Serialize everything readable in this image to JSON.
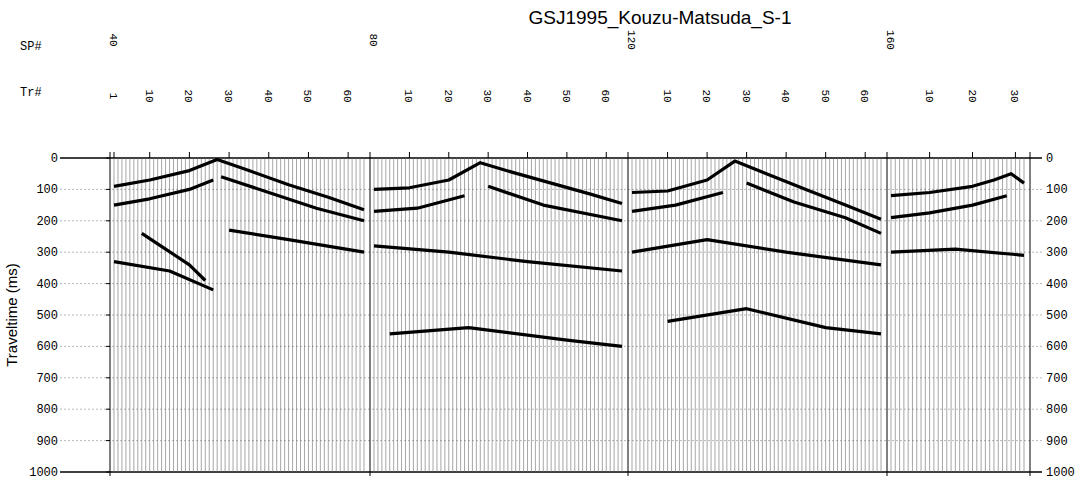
{
  "chart_data": {
    "type": "wiggle",
    "title": "GSJ1995_Kouzu-Matsuda_S-1",
    "y_label": "Traveltime (ms)",
    "x_labels": [
      "SP#",
      "Tr#"
    ],
    "ylim": [
      0,
      1000
    ],
    "yticks": [
      0,
      100,
      200,
      300,
      400,
      500,
      600,
      700,
      800,
      900,
      1000
    ],
    "grid": true,
    "panels": [
      {
        "sp": 40,
        "xlim": [
          1,
          64
        ],
        "xticks": [
          1,
          10,
          20,
          30,
          40,
          50,
          60
        ],
        "events": [
          {
            "trace": [
              1,
              10,
              20,
              27,
              35,
              45,
              55,
              64
            ],
            "time": [
              90,
              70,
              40,
              5,
              40,
              85,
              125,
              165
            ]
          },
          {
            "trace": [
              1,
              10,
              20,
              26
            ],
            "time": [
              150,
              130,
              100,
              70
            ]
          },
          {
            "trace": [
              8,
              14,
              20,
              24
            ],
            "time": [
              240,
              290,
              340,
              390
            ]
          },
          {
            "trace": [
              28,
              40,
              52,
              64
            ],
            "time": [
              60,
              110,
              160,
              200
            ]
          },
          {
            "trace": [
              1,
              15,
              26
            ],
            "time": [
              330,
              360,
              420
            ]
          },
          {
            "trace": [
              30,
              45,
              64
            ],
            "time": [
              230,
              260,
              300
            ]
          }
        ]
      },
      {
        "sp": 80,
        "xlim": [
          1,
          64
        ],
        "xticks": [
          10,
          20,
          30,
          40,
          50,
          60
        ],
        "events": [
          {
            "trace": [
              1,
              10,
              20,
              28,
              36,
              46,
              56,
              64
            ],
            "time": [
              100,
              95,
              70,
              15,
              45,
              80,
              115,
              145
            ]
          },
          {
            "trace": [
              1,
              12,
              24
            ],
            "time": [
              170,
              160,
              120
            ]
          },
          {
            "trace": [
              30,
              44,
              64
            ],
            "time": [
              90,
              150,
              200
            ]
          },
          {
            "trace": [
              1,
              20,
              40,
              64
            ],
            "time": [
              280,
              300,
              330,
              360
            ]
          },
          {
            "trace": [
              5,
              25,
              50,
              64
            ],
            "time": [
              560,
              540,
              580,
              600
            ]
          }
        ]
      },
      {
        "sp": 120,
        "xlim": [
          1,
          64
        ],
        "xticks": [
          10,
          20,
          30,
          40,
          50,
          60
        ],
        "events": [
          {
            "trace": [
              1,
              10,
              20,
              27,
              35,
              45,
              55,
              64
            ],
            "time": [
              110,
              105,
              70,
              10,
              50,
              100,
              150,
              195
            ]
          },
          {
            "trace": [
              1,
              12,
              24
            ],
            "time": [
              170,
              150,
              110
            ]
          },
          {
            "trace": [
              30,
              42,
              55,
              64
            ],
            "time": [
              80,
              140,
              190,
              240
            ]
          },
          {
            "trace": [
              1,
              20,
              40,
              64
            ],
            "time": [
              300,
              260,
              300,
              340
            ]
          },
          {
            "trace": [
              10,
              30,
              50,
              64
            ],
            "time": [
              520,
              480,
              540,
              560
            ]
          }
        ]
      },
      {
        "sp": 160,
        "xlim": [
          1,
          32
        ],
        "xticks": [
          10,
          20,
          30
        ],
        "events": [
          {
            "trace": [
              1,
              10,
              20,
              25,
              29,
              32
            ],
            "time": [
              120,
              110,
              90,
              70,
              50,
              80
            ]
          },
          {
            "trace": [
              1,
              10,
              20,
              28
            ],
            "time": [
              190,
              175,
              150,
              120
            ]
          },
          {
            "trace": [
              1,
              16,
              32
            ],
            "time": [
              300,
              290,
              310
            ]
          }
        ]
      }
    ]
  }
}
